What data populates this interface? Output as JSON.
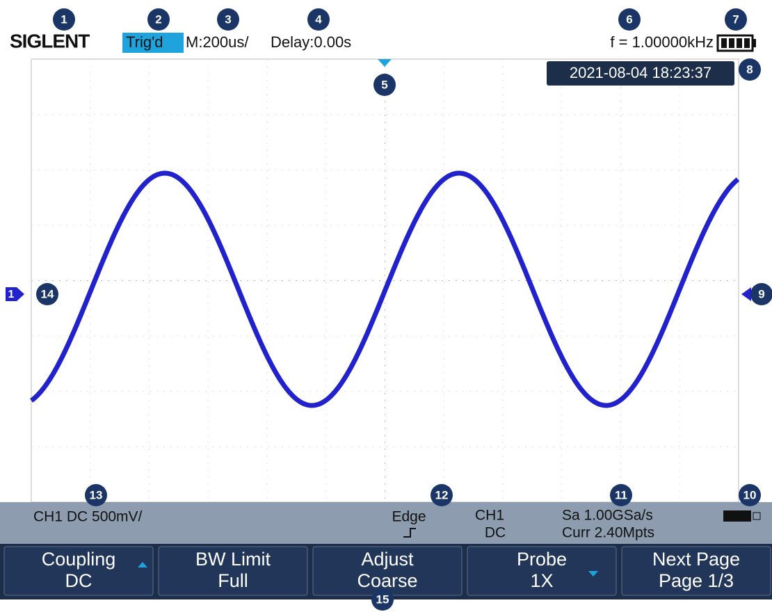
{
  "header": {
    "brand": "SIGLENT",
    "trigger_status": "Trig'd",
    "timebase": "M:200us/",
    "delay": "Delay:0.00s",
    "frequency": "f = 1.00000kHz"
  },
  "datetime": "2021-08-04 18:23:37",
  "channel_marker": "1",
  "callouts": [
    "1",
    "2",
    "3",
    "4",
    "5",
    "6",
    "7",
    "8",
    "9",
    "10",
    "11",
    "12",
    "13",
    "14",
    "15"
  ],
  "status_bar": {
    "channel": "CH1 DC 500mV/",
    "trigger_type": "Edge",
    "trigger_source": "CH1",
    "trigger_coupling": "DC",
    "sample_rate": "Sa 1.00GSa/s",
    "memory_depth": "Curr 2.40Mpts"
  },
  "menu": [
    {
      "label": "Coupling",
      "value": "DC"
    },
    {
      "label": "BW Limit",
      "value": "Full"
    },
    {
      "label": "Adjust",
      "value": "Coarse"
    },
    {
      "label": "Probe",
      "value": "1X"
    },
    {
      "label": "Next Page",
      "value": "Page 1/3"
    }
  ]
}
